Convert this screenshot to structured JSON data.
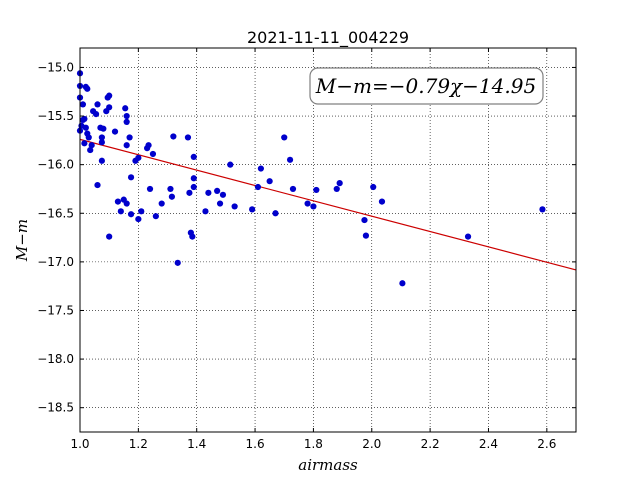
{
  "chart_data": {
    "type": "scatter",
    "title": "2021-11-11_004229",
    "xlabel": "airmass",
    "ylabel": "M−m",
    "xlim": [
      1.0,
      2.7
    ],
    "ylim": [
      -18.75,
      -14.8
    ],
    "y_inverted": true,
    "grid": true,
    "x_ticks": [
      1.0,
      1.2,
      1.4,
      1.6,
      1.8,
      2.0,
      2.2,
      2.4,
      2.6
    ],
    "x_tick_labels": [
      "1.0",
      "1.2",
      "1.4",
      "1.6",
      "1.8",
      "2.0",
      "2.2",
      "2.4",
      "2.6"
    ],
    "y_ticks": [
      -15.0,
      -15.5,
      -16.0,
      -16.5,
      -17.0,
      -17.5,
      -18.0,
      -18.5
    ],
    "y_tick_labels": [
      "−15.0",
      "−15.5",
      "−16.0",
      "−16.5",
      "−17.0",
      "−17.5",
      "−18.0",
      "−18.5"
    ],
    "annotation": "M−m=−0.79χ−14.95",
    "point_color": "#0000cc",
    "fit_color": "#cc0000",
    "fit": {
      "slope": -0.79,
      "intercept": -14.95,
      "x_range": [
        1.0,
        2.7
      ]
    },
    "points": [
      [
        1.0,
        -15.06
      ],
      [
        1.0,
        -15.19
      ],
      [
        1.0,
        -15.31
      ],
      [
        1.01,
        -15.54
      ],
      [
        1.005,
        -15.6
      ],
      [
        1.0,
        -15.65
      ],
      [
        1.01,
        -15.38
      ],
      [
        1.02,
        -15.2
      ],
      [
        1.025,
        -15.22
      ],
      [
        1.015,
        -15.53
      ],
      [
        1.02,
        -15.62
      ],
      [
        1.025,
        -15.68
      ],
      [
        1.03,
        -15.72
      ],
      [
        1.015,
        -15.78
      ],
      [
        1.035,
        -15.85
      ],
      [
        1.04,
        -15.8
      ],
      [
        1.045,
        -15.45
      ],
      [
        1.055,
        -15.48
      ],
      [
        1.06,
        -15.38
      ],
      [
        1.07,
        -15.62
      ],
      [
        1.075,
        -15.72
      ],
      [
        1.08,
        -15.63
      ],
      [
        1.075,
        -15.77
      ],
      [
        1.09,
        -15.45
      ],
      [
        1.095,
        -15.31
      ],
      [
        1.1,
        -15.29
      ],
      [
        1.1,
        -15.41
      ],
      [
        1.06,
        -16.21
      ],
      [
        1.075,
        -15.96
      ],
      [
        1.12,
        -15.66
      ],
      [
        1.1,
        -16.74
      ],
      [
        1.13,
        -16.38
      ],
      [
        1.14,
        -16.48
      ],
      [
        1.15,
        -16.36
      ],
      [
        1.16,
        -16.4
      ],
      [
        1.155,
        -15.42
      ],
      [
        1.16,
        -15.5
      ],
      [
        1.16,
        -15.56
      ],
      [
        1.16,
        -15.8
      ],
      [
        1.17,
        -15.72
      ],
      [
        1.175,
        -16.13
      ],
      [
        1.175,
        -16.51
      ],
      [
        1.19,
        -15.96
      ],
      [
        1.2,
        -15.93
      ],
      [
        1.2,
        -16.56
      ],
      [
        1.21,
        -16.48
      ],
      [
        1.23,
        -15.83
      ],
      [
        1.235,
        -15.8
      ],
      [
        1.24,
        -16.25
      ],
      [
        1.25,
        -15.89
      ],
      [
        1.26,
        -16.53
      ],
      [
        1.28,
        -16.4
      ],
      [
        1.31,
        -16.25
      ],
      [
        1.315,
        -16.33
      ],
      [
        1.32,
        -15.71
      ],
      [
        1.335,
        -17.01
      ],
      [
        1.37,
        -15.72
      ],
      [
        1.375,
        -16.29
      ],
      [
        1.38,
        -16.7
      ],
      [
        1.385,
        -16.74
      ],
      [
        1.39,
        -16.23
      ],
      [
        1.39,
        -16.14
      ],
      [
        1.39,
        -15.92
      ],
      [
        1.43,
        -16.48
      ],
      [
        1.44,
        -16.29
      ],
      [
        1.47,
        -16.27
      ],
      [
        1.48,
        -16.4
      ],
      [
        1.49,
        -16.31
      ],
      [
        1.515,
        -16.0
      ],
      [
        1.53,
        -16.43
      ],
      [
        1.59,
        -16.46
      ],
      [
        1.61,
        -16.23
      ],
      [
        1.62,
        -16.04
      ],
      [
        1.65,
        -16.17
      ],
      [
        1.67,
        -16.5
      ],
      [
        1.7,
        -15.72
      ],
      [
        1.72,
        -15.95
      ],
      [
        1.73,
        -16.25
      ],
      [
        1.78,
        -16.4
      ],
      [
        1.8,
        -16.43
      ],
      [
        1.81,
        -16.26
      ],
      [
        1.88,
        -16.25
      ],
      [
        1.89,
        -16.19
      ],
      [
        1.975,
        -16.57
      ],
      [
        1.98,
        -16.73
      ],
      [
        2.005,
        -16.23
      ],
      [
        2.035,
        -16.38
      ],
      [
        2.105,
        -17.22
      ],
      [
        2.33,
        -16.74
      ],
      [
        2.585,
        -16.46
      ]
    ]
  }
}
